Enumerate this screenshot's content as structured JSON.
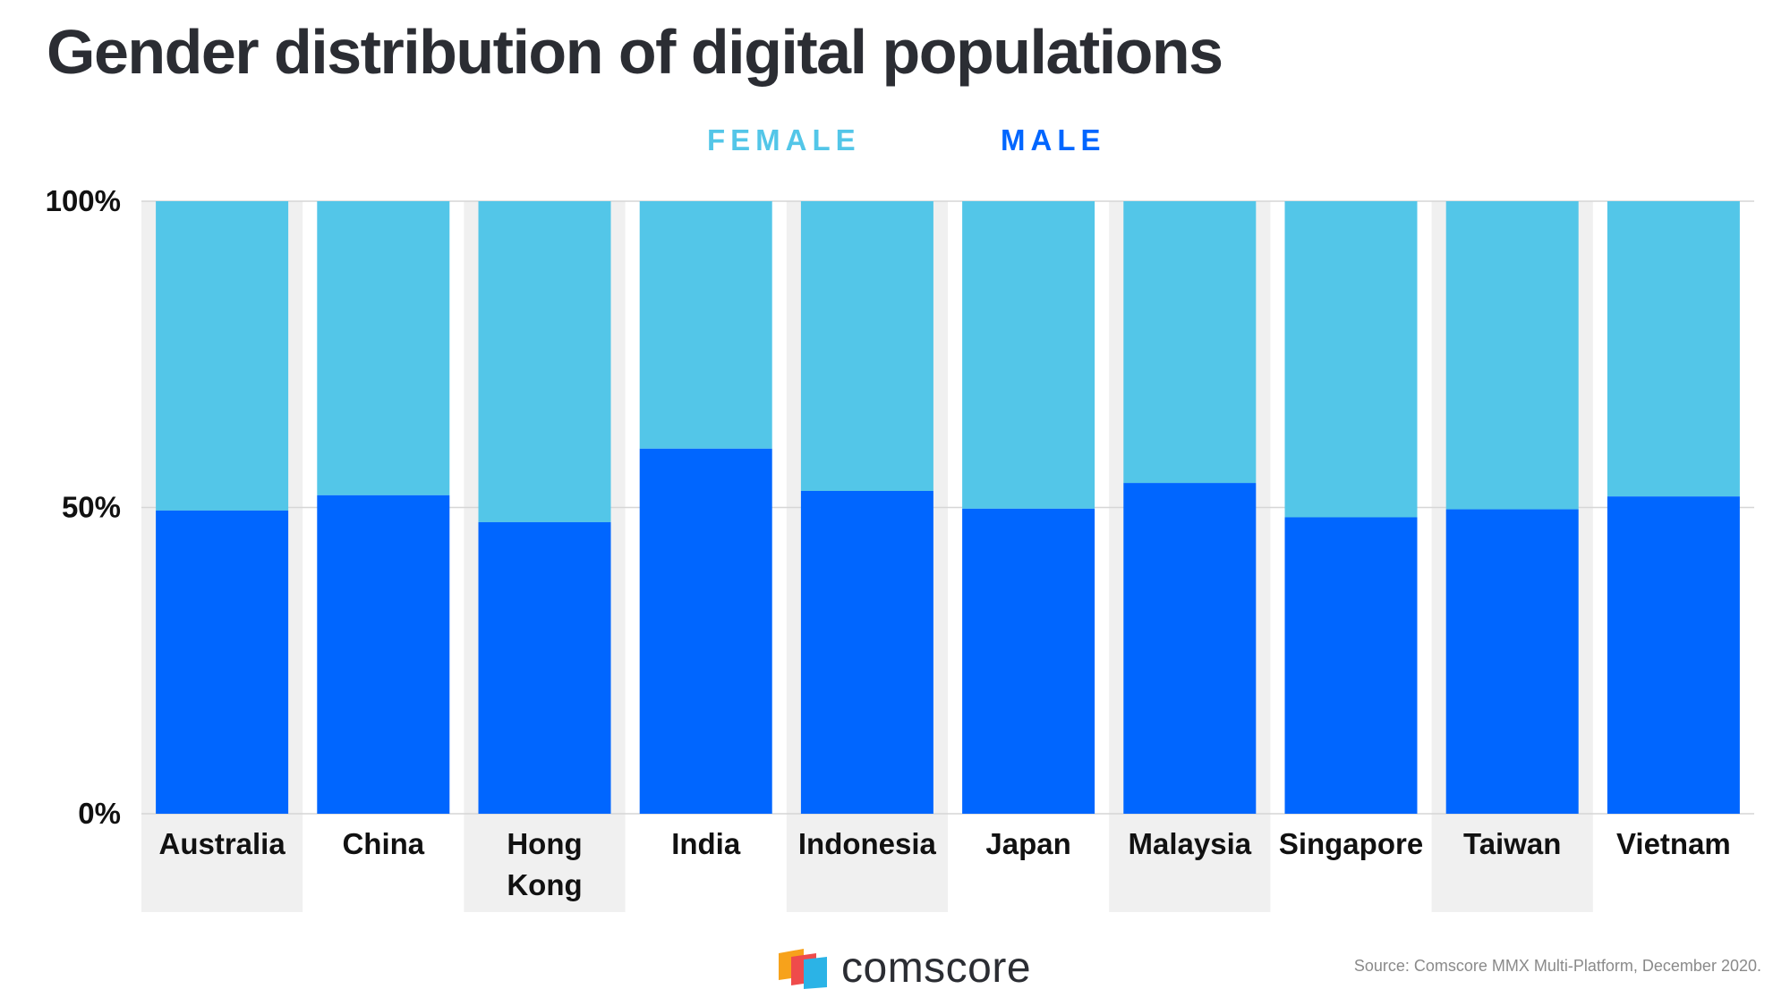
{
  "title": "Gender distribution of digital populations",
  "source": "Source: Comscore MMX Multi-Platform, December 2020.",
  "brand": {
    "name": "comscore",
    "logo_icon": "comscore-logo-icon"
  },
  "colors": {
    "female": "#53c6e8",
    "male": "#0066ff",
    "band": "#f0f0f0",
    "grid": "#d6d6d6"
  },
  "chart_data": {
    "type": "bar",
    "stacked": true,
    "legend_position": "top-center",
    "grid": true,
    "ylim": [
      0,
      100
    ],
    "y_ticks": [
      "0%",
      "50%",
      "100%"
    ],
    "y_tick_values": [
      0,
      50,
      100
    ],
    "categories": [
      "Australia",
      "China",
      "Hong Kong",
      "India",
      "Indonesia",
      "Japan",
      "Malaysia",
      "Singapore",
      "Taiwan",
      "Vietnam"
    ],
    "series": [
      {
        "name": "MALE",
        "values": [
          49.5,
          52,
          47.6,
          59.6,
          52.7,
          49.8,
          54,
          48.4,
          49.7,
          51.8
        ]
      },
      {
        "name": "FEMALE",
        "values": [
          50.5,
          48,
          52.4,
          40.4,
          47.3,
          50.2,
          46,
          51.6,
          50.3,
          48.2
        ]
      }
    ]
  }
}
